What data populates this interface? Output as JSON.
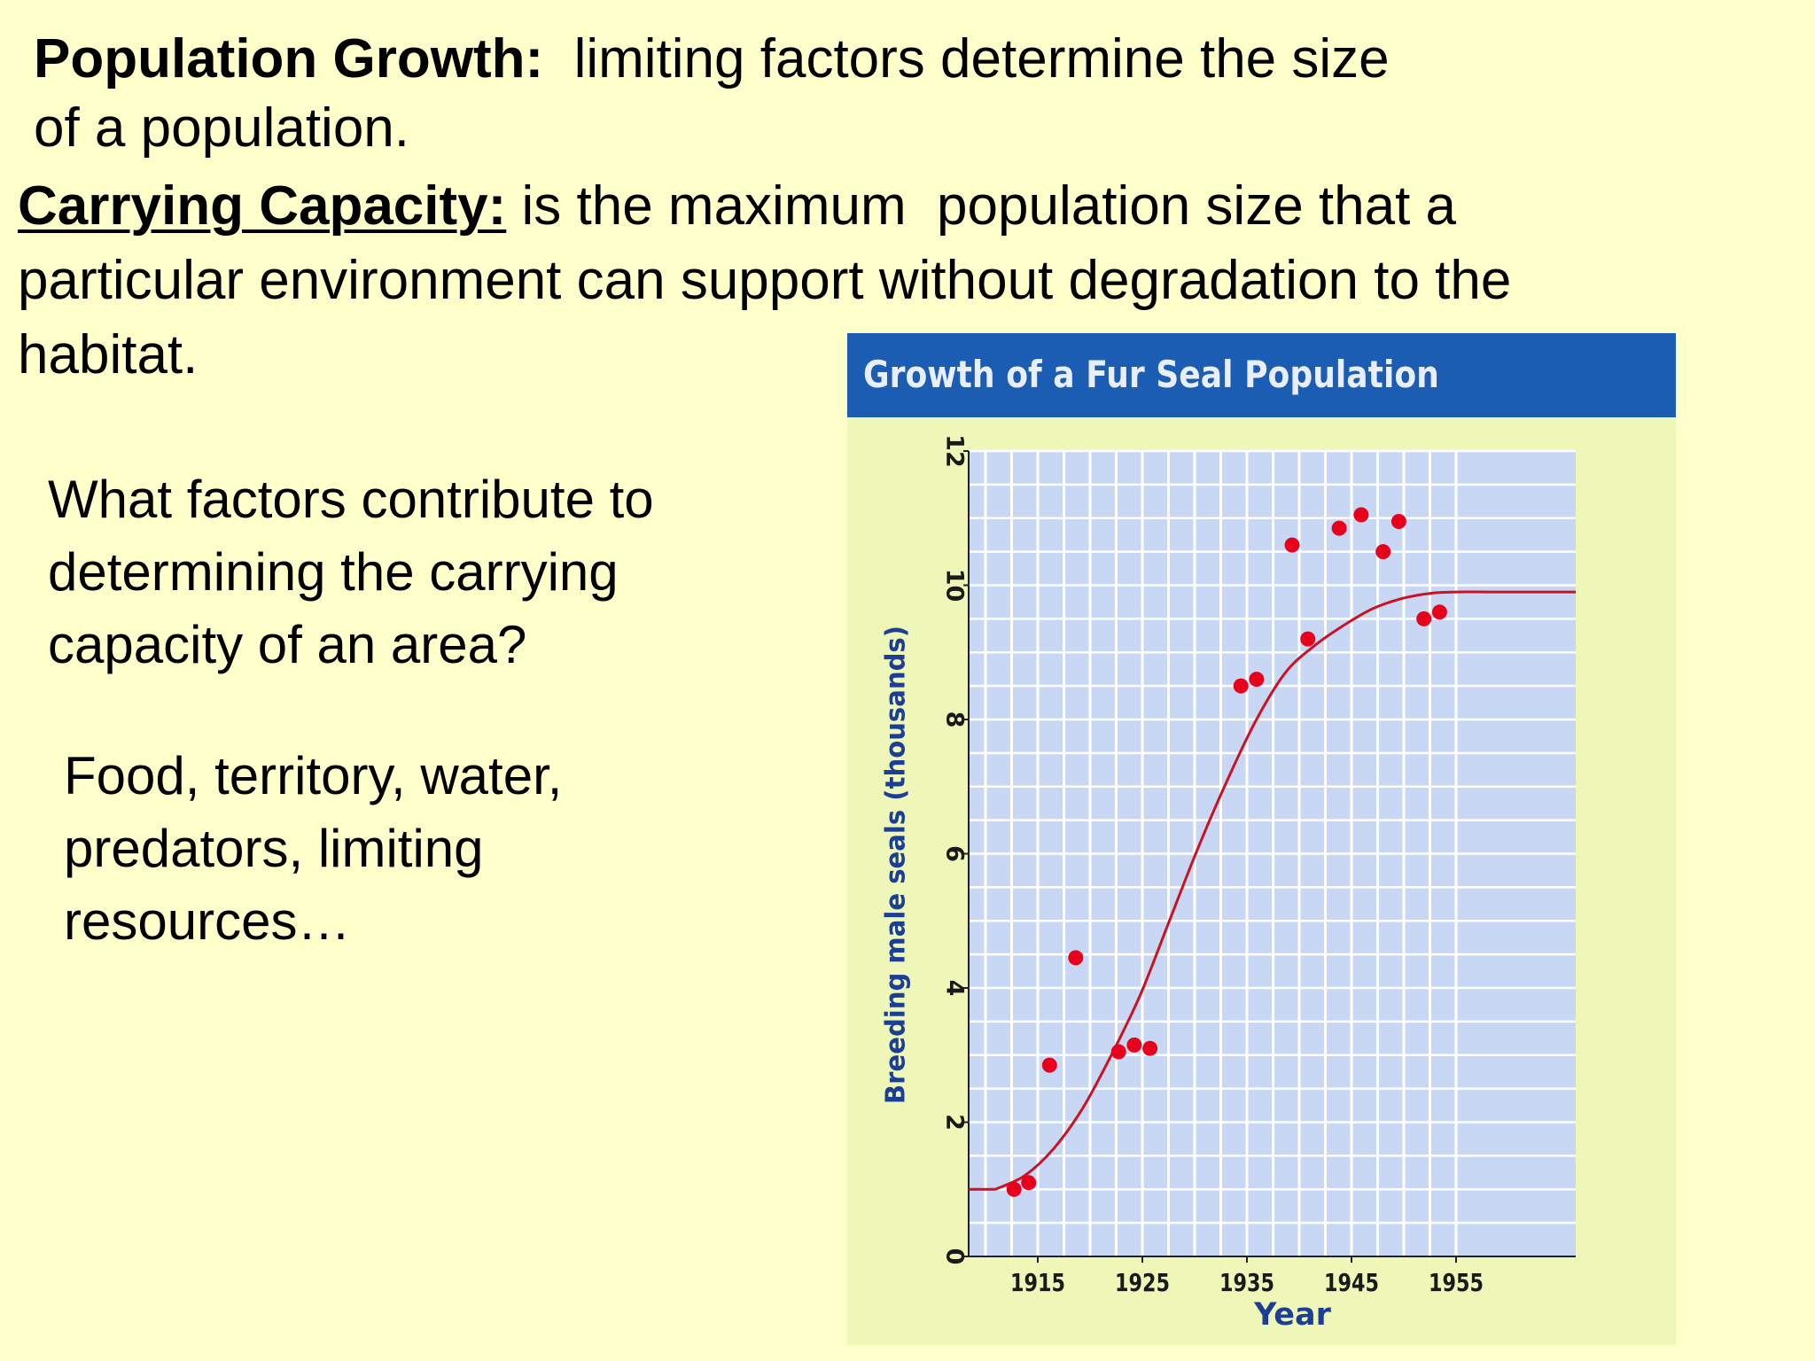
{
  "text": {
    "population_growth": {
      "term": "Population Growth:",
      "line1_rest": "  limiting factors determine the size",
      "line2": "of a population."
    },
    "carrying_capacity": {
      "term": "Carrying Capacity:",
      "line1_rest": " is the maximum  population size that a",
      "line2": "particular environment can support without degradation to the",
      "line3": "habitat."
    },
    "question": {
      "lines": [
        "What factors contribute to",
        "determining the carrying",
        "capacity of an area?"
      ]
    },
    "answer": {
      "lines": [
        "Food, territory, water,",
        "predators, limiting",
        "resources…"
      ]
    }
  },
  "colors": {
    "background": "#ffffcc",
    "chart_header": "#1c5db4",
    "plot_area": "#c8d8f4",
    "data_points": "#e8001c",
    "axis_text": "#1a1a1a",
    "axis_title": "#1c3f95"
  },
  "chart_data": {
    "type": "scatter",
    "title": "Growth of a Fur Seal Population",
    "xlabel": "Year",
    "ylabel": "Breeding male seals (thousands)",
    "xlim": [
      1915,
      1955
    ],
    "ylim": [
      0,
      12
    ],
    "x_ticks": [
      "1915",
      "1925",
      "1935",
      "1945",
      "1955"
    ],
    "y_ticks": [
      "0",
      "2",
      "4",
      "6",
      "8",
      "10",
      "12"
    ],
    "grid": true,
    "points": {
      "x": [
        1916.2,
        1917.6,
        1919.6,
        1922.1,
        1926.2,
        1927.7,
        1929.2,
        1937.9,
        1939.4,
        1942.8,
        1944.3,
        1947.3,
        1949.4,
        1951.5,
        1953.0,
        1955.4,
        1956.9
      ],
      "y": [
        1.0,
        1.1,
        2.85,
        4.45,
        3.05,
        3.15,
        3.1,
        8.5,
        8.6,
        10.6,
        9.2,
        10.85,
        11.05,
        10.5,
        10.95,
        9.5,
        9.6
      ]
    },
    "series": [
      {
        "type": "line",
        "x": [
          1915,
          1917,
          1919,
          1921,
          1923,
          1925,
          1927,
          1929,
          1931,
          1933,
          1935,
          1937,
          1939,
          1941,
          1943,
          1945,
          1947,
          1949,
          1951,
          1953,
          1955
        ],
        "y": [
          1.0,
          1.2,
          1.6,
          2.2,
          3.0,
          3.9,
          5.0,
          6.1,
          7.1,
          8.0,
          8.7,
          9.1,
          9.4,
          9.65,
          9.8,
          9.88,
          9.9,
          9.9,
          9.9,
          9.9,
          9.9
        ]
      }
    ]
  }
}
